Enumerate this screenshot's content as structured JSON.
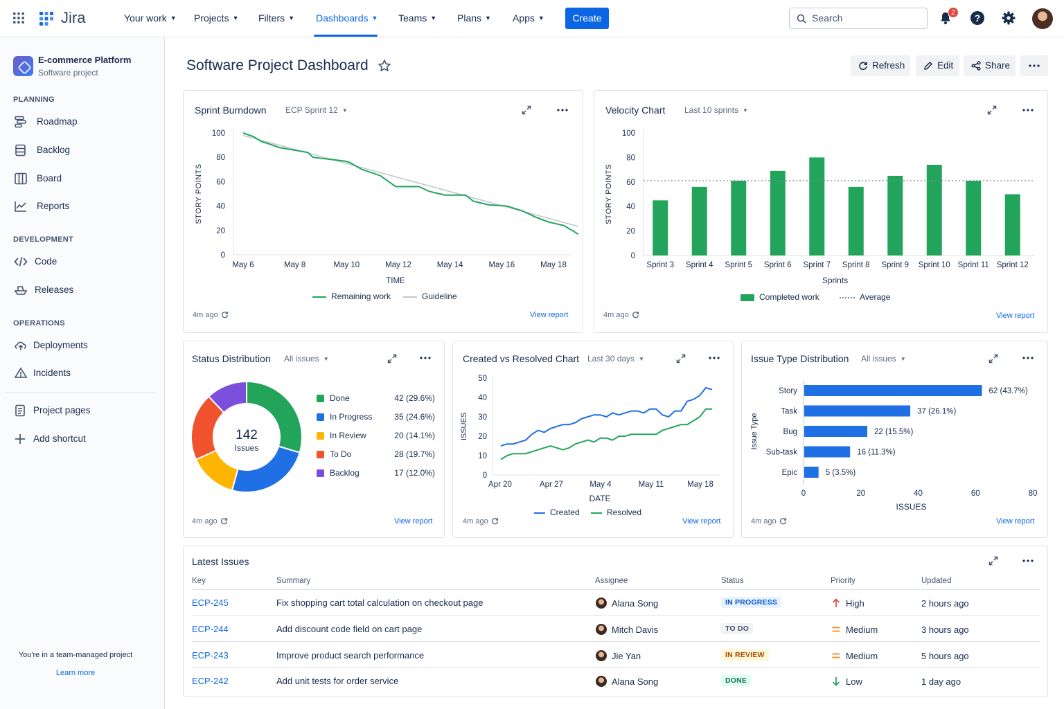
{
  "topbar": {
    "brand": "Jira",
    "nav": [
      {
        "label": "Your work"
      },
      {
        "label": "Projects"
      },
      {
        "label": "Filters"
      },
      {
        "label": "Dashboards"
      },
      {
        "label": "Teams"
      },
      {
        "label": "Plans"
      },
      {
        "label": "Apps"
      }
    ],
    "create_label": "Create",
    "search_placeholder": "Search",
    "notification_count": "2"
  },
  "sidebar": {
    "project_name": "E-commerce Platform",
    "project_type": "Software project",
    "sections": {
      "planning": "PLANNING",
      "development": "DEVELOPMENT",
      "operations": "OPERATIONS"
    },
    "items": {
      "roadmap": "Roadmap",
      "backlog": "Backlog",
      "board": "Board",
      "reports": "Reports",
      "code": "Code",
      "releases": "Releases",
      "deployments": "Deployments",
      "incidents": "Incidents",
      "project_pages": "Project pages",
      "add_shortcut": "Add shortcut"
    },
    "footer_text": "You're in a team-managed project",
    "learn_more": "Learn more"
  },
  "header": {
    "title": "Software Project Dashboard",
    "refresh": "Refresh",
    "edit": "Edit",
    "share": "Share"
  },
  "common": {
    "updated": "4m ago",
    "view_report": "View report"
  },
  "burndown": {
    "title": "Sprint Burndown",
    "filter": "ECP Sprint 12",
    "legend_remaining": "Remaining work",
    "legend_guideline": "Guideline"
  },
  "velocity": {
    "title": "Velocity Chart",
    "filter": "Last 10 sprints",
    "legend_completed": "Completed work",
    "legend_average": "Average"
  },
  "status": {
    "title": "Status Distribution",
    "filter": "All issues",
    "total": "142",
    "total_label": "Issues"
  },
  "created_resolved": {
    "title": "Created vs Resolved Chart",
    "filter": "Last 30 days",
    "legend_created": "Created",
    "legend_resolved": "Resolved"
  },
  "issue_types": {
    "title": "Issue Type Distribution",
    "filter": "All issues"
  },
  "latest": {
    "title": "Latest Issues",
    "columns": {
      "key": "Key",
      "summary": "Summary",
      "assignee": "Assignee",
      "status": "Status",
      "priority": "Priority",
      "updated": "Updated"
    },
    "rows": [
      {
        "key": "ECP-245",
        "summary": "Fix shopping cart total calculation on checkout page",
        "assignee": "Alana Song",
        "status": "IN PROGRESS",
        "priority": "High",
        "updated": "2 hours ago"
      },
      {
        "key": "ECP-244",
        "summary": "Add discount code field on cart page",
        "assignee": "Mitch Davis",
        "status": "TO DO",
        "priority": "Medium",
        "updated": "3 hours ago"
      },
      {
        "key": "ECP-243",
        "summary": "Improve product search performance",
        "assignee": "Jie Yan",
        "status": "IN REVIEW",
        "priority": "Medium",
        "updated": "5 hours ago"
      },
      {
        "key": "ECP-242",
        "summary": "Add unit tests for order service",
        "assignee": "Alana Song",
        "status": "DONE",
        "priority": "Low",
        "updated": "1 day ago"
      }
    ]
  },
  "colors": {
    "brand_blue": "#0c66e4",
    "green": "#22a55b",
    "blue": "#1f6fe5",
    "yellow": "#ffb400",
    "red": "#f0522d",
    "purple": "#7a4fd9"
  },
  "chart_data": [
    {
      "id": "burndown",
      "type": "line",
      "ylabel": "STORY POINTS",
      "xlabel": "TIME",
      "ylim": [
        0,
        100
      ],
      "yticks": [
        0,
        20,
        40,
        60,
        80,
        100
      ],
      "xticks": [
        "May 6",
        "May 8",
        "May 10",
        "May 12",
        "May 14",
        "May 16",
        "May 18"
      ],
      "series": [
        {
          "name": "Remaining work",
          "style": "step",
          "points": [
            [
              0,
              100
            ],
            [
              0.4,
              97
            ],
            [
              0.7,
              93
            ],
            [
              1.0,
              91
            ],
            [
              1.4,
              88
            ],
            [
              2.5,
              84
            ],
            [
              2.7,
              80
            ],
            [
              3.9,
              77
            ],
            [
              4.1,
              76
            ],
            [
              4.6,
              70
            ],
            [
              5.3,
              65
            ],
            [
              5.9,
              56
            ],
            [
              6.8,
              56
            ],
            [
              7.2,
              52
            ],
            [
              7.8,
              49
            ],
            [
              8.6,
              49
            ],
            [
              8.9,
              44
            ],
            [
              9.5,
              41
            ],
            [
              10.2,
              40
            ],
            [
              10.8,
              36
            ],
            [
              11.3,
              31
            ],
            [
              11.8,
              27
            ],
            [
              12.4,
              24
            ],
            [
              12.8,
              19
            ],
            [
              13.1,
              15
            ],
            [
              13.8,
              14
            ],
            [
              14.1,
              10
            ],
            [
              14.6,
              9
            ],
            [
              15.2,
              5
            ],
            [
              15.6,
              1
            ],
            [
              16.2,
              0
            ]
          ]
        },
        {
          "name": "Guideline",
          "style": "linear",
          "points": [
            [
              0,
              98
            ],
            [
              17,
              0
            ]
          ]
        }
      ]
    },
    {
      "id": "velocity",
      "type": "bar",
      "ylabel": "STORY POINTS",
      "xlabel": "Sprints",
      "ylim": [
        0,
        100
      ],
      "yticks": [
        0,
        20,
        40,
        60,
        80,
        100
      ],
      "categories": [
        "Sprint 3",
        "Sprint 4",
        "Sprint 5",
        "Sprint 6",
        "Sprint 7",
        "Sprint 8",
        "Sprint 9",
        "Sprint 10",
        "Sprint 11",
        "Sprint 12"
      ],
      "series": [
        {
          "name": "Completed work",
          "values": [
            45,
            56,
            61,
            69,
            80,
            56,
            65,
            74,
            61,
            50
          ]
        }
      ],
      "average": 61
    },
    {
      "id": "status",
      "type": "pie",
      "categories": [
        "Done",
        "In Progress",
        "In Review",
        "To Do",
        "Backlog"
      ],
      "values": [
        42,
        35,
        20,
        28,
        17
      ],
      "labels": [
        "42 (29.6%)",
        "35 (24.6%)",
        "20 (14.1%)",
        "28 (19.7%)",
        "17 (12.0%)"
      ],
      "total": 142
    },
    {
      "id": "created_resolved",
      "type": "line",
      "ylabel": "ISSUES",
      "xlabel": "DATE",
      "ylim": [
        0,
        50
      ],
      "yticks": [
        0,
        10,
        20,
        30,
        40,
        50
      ],
      "xticks": [
        "Apr 20",
        "Apr 27",
        "May 4",
        "May 11",
        "May 18"
      ],
      "series": [
        {
          "name": "Created",
          "values": [
            15,
            16,
            16,
            17,
            18,
            21,
            23,
            22,
            24,
            25,
            26,
            26,
            27,
            29,
            30,
            31,
            31,
            30,
            32,
            31,
            32,
            33,
            33,
            32,
            34,
            34,
            31,
            30,
            33,
            33,
            38,
            39,
            41,
            45,
            44
          ]
        },
        {
          "name": "Resolved",
          "values": [
            8,
            10,
            11,
            11,
            11,
            12,
            13,
            14,
            15,
            14,
            13,
            14,
            16,
            17,
            18,
            17,
            19,
            19,
            18,
            20,
            20,
            21,
            21,
            21,
            21,
            21,
            23,
            24,
            25,
            26,
            26,
            28,
            30,
            34,
            34
          ]
        }
      ]
    },
    {
      "id": "issue_types",
      "type": "bar",
      "orientation": "horizontal",
      "ylabel": "Issue Type",
      "xlabel": "ISSUES",
      "xlim": [
        0,
        80
      ],
      "xticks": [
        0,
        20,
        40,
        60,
        80
      ],
      "categories": [
        "Story",
        "Task",
        "Bug",
        "Sub-task",
        "Epic"
      ],
      "values": [
        62,
        37,
        22,
        16,
        5
      ],
      "labels": [
        "62 (43.7%)",
        "37 (26.1%)",
        "22 (15.5%)",
        "16 (11.3%)",
        "5 (3.5%)"
      ]
    }
  ]
}
